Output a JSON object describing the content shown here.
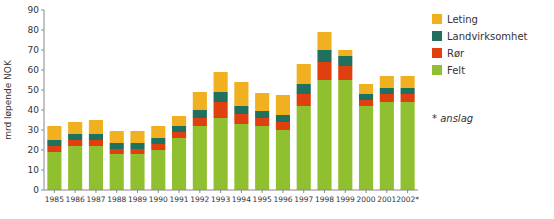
{
  "chart_data": {
    "type": "bar",
    "stacked": true,
    "categories": [
      "1985",
      "1986",
      "1987",
      "1988",
      "1989",
      "1990",
      "1991",
      "1992",
      "1993",
      "1994",
      "1995",
      "1996",
      "1997",
      "1998",
      "1999",
      "2000",
      "2001",
      "2002*"
    ],
    "series": [
      {
        "name": "Felt",
        "color": "#90c030",
        "values": [
          19,
          22,
          22,
          18,
          18,
          20,
          26,
          32,
          36,
          33,
          32,
          30,
          42,
          55,
          55,
          42,
          44,
          44
        ]
      },
      {
        "name": "Rør",
        "color": "#e04010",
        "values": [
          3,
          3,
          3,
          2.5,
          2.5,
          3,
          3,
          4,
          8,
          5,
          4,
          4,
          6,
          9,
          7,
          3,
          4,
          4
        ]
      },
      {
        "name": "Landvirksomhet",
        "color": "#207060",
        "values": [
          3,
          3,
          3,
          3,
          3,
          3,
          3,
          4,
          5,
          4,
          3.5,
          3.5,
          5,
          6,
          5,
          3,
          3,
          3
        ]
      },
      {
        "name": "Leting",
        "color": "#f0b020",
        "values": [
          7,
          6,
          7,
          6,
          6,
          6,
          5,
          9,
          10,
          12,
          9,
          10,
          10,
          9,
          3,
          5,
          6,
          6
        ]
      }
    ],
    "ylabel": "mrd løpende NOK",
    "ylim": [
      0,
      90
    ],
    "yticks": [
      0,
      10,
      20,
      30,
      40,
      50,
      60,
      70,
      80,
      90
    ],
    "grid": false,
    "legend": "right",
    "annotation": "* anslag"
  }
}
